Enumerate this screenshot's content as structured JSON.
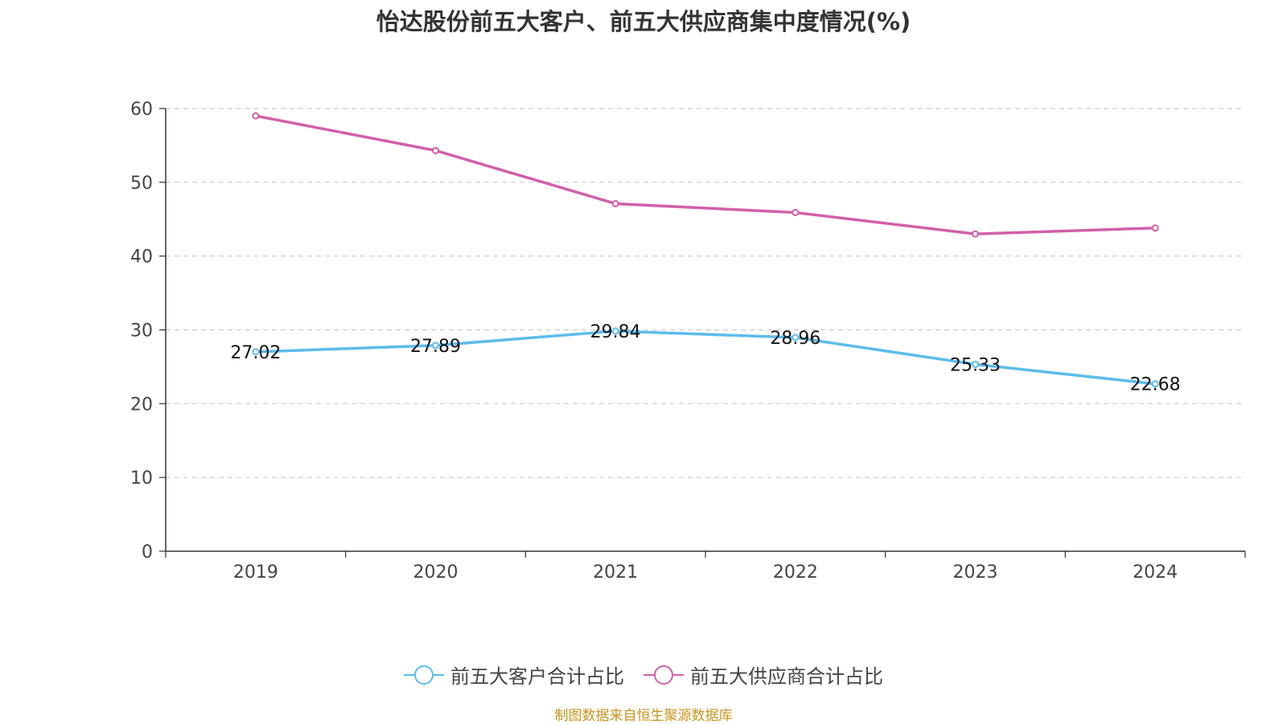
{
  "chart_data": {
    "type": "line",
    "title": "怡达股份前五大客户、前五大供应商集中度情况(%)",
    "categories": [
      "2019",
      "2020",
      "2021",
      "2022",
      "2023",
      "2024"
    ],
    "ylim": [
      0,
      60
    ],
    "yticks": [
      0,
      10,
      20,
      30,
      40,
      50,
      60
    ],
    "grid": true,
    "legend_position": "bottom-center",
    "series": [
      {
        "name": "前五大客户合计占比",
        "color": "#5bbcec",
        "values": [
          27.02,
          27.89,
          29.84,
          28.96,
          25.33,
          22.68
        ],
        "data_labels": [
          "27.02",
          "27.89",
          "29.84",
          "28.96",
          "25.33",
          "22.68"
        ]
      },
      {
        "name": "前五大供应商合计占比",
        "color": "#d160a9",
        "values": [
          59.0,
          54.3,
          47.1,
          45.9,
          43.0,
          43.8
        ]
      }
    ]
  },
  "source": "制图数据来自恒生聚源数据库"
}
